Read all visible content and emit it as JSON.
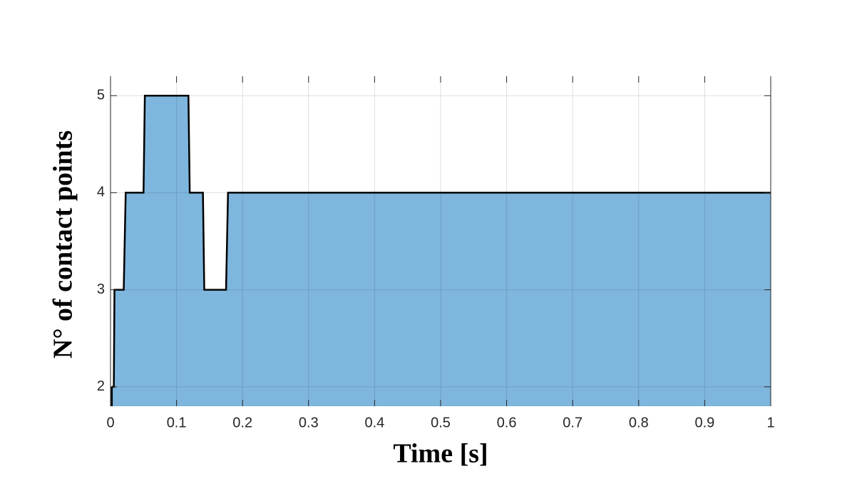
{
  "chart_data": {
    "type": "area",
    "x_label": "Time [s]",
    "y_label": "N° of contact points",
    "x": [
      0.002,
      0.005,
      0.006,
      0.02,
      0.023,
      0.05,
      0.052,
      0.118,
      0.12,
      0.14,
      0.142,
      0.175,
      0.178,
      1
    ],
    "values": [
      2,
      2,
      3,
      3,
      4,
      4,
      5,
      5,
      4,
      4,
      3,
      3,
      4,
      4
    ],
    "color": "#7eb6dd",
    "line_color": "#000000",
    "xlim": [
      0,
      1
    ],
    "xticks": [
      0,
      0.1,
      0.2,
      0.3,
      0.4,
      0.5,
      0.6,
      0.7,
      0.8,
      0.9,
      1
    ],
    "ylim": [
      1.8,
      5.2
    ],
    "yticks": [
      2,
      3,
      4,
      5
    ],
    "grid": true
  }
}
